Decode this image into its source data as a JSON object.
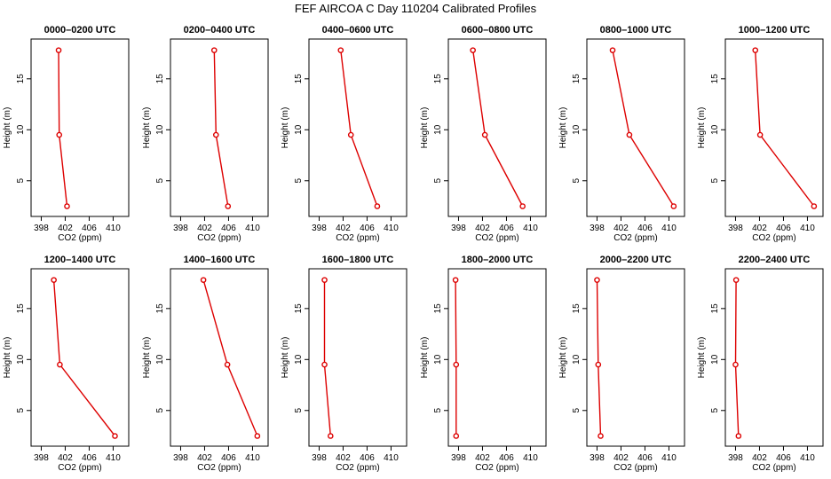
{
  "figure": {
    "title": "FEF AIRCOA C  Day 110204  Calibrated Profiles"
  },
  "colors": {
    "series": "#dd0000",
    "axis": "#000000",
    "background": "#ffffff"
  },
  "chart_data": [
    {
      "type": "line",
      "title": "0000–0200 UTC",
      "xlabel": "CO2 (ppm)",
      "ylabel": "Height (m)",
      "xlim": [
        396.3,
        412.6
      ],
      "ylim": [
        1.5,
        18.9
      ],
      "xticks": [
        398,
        402,
        406,
        410
      ],
      "yticks": [
        5,
        10,
        15
      ],
      "height": [
        2.5,
        9.5,
        17.8
      ],
      "co2": [
        402.3,
        401.0,
        400.9
      ]
    },
    {
      "type": "line",
      "title": "0200–0400 UTC",
      "xlabel": "CO2 (ppm)",
      "ylabel": "Height (m)",
      "xlim": [
        396.3,
        412.6
      ],
      "ylim": [
        1.5,
        18.9
      ],
      "xticks": [
        398,
        402,
        406,
        410
      ],
      "yticks": [
        5,
        10,
        15
      ],
      "height": [
        2.5,
        9.5,
        17.8
      ],
      "co2": [
        405.9,
        403.9,
        403.6
      ]
    },
    {
      "type": "line",
      "title": "0400–0600 UTC",
      "xlabel": "CO2 (ppm)",
      "ylabel": "Height (m)",
      "xlim": [
        396.3,
        412.6
      ],
      "ylim": [
        1.5,
        18.9
      ],
      "xticks": [
        398,
        402,
        406,
        410
      ],
      "yticks": [
        5,
        10,
        15
      ],
      "height": [
        2.5,
        9.5,
        17.8
      ],
      "co2": [
        407.7,
        403.3,
        401.6
      ]
    },
    {
      "type": "line",
      "title": "0600–0800 UTC",
      "xlabel": "CO2 (ppm)",
      "ylabel": "Height (m)",
      "xlim": [
        396.3,
        412.6
      ],
      "ylim": [
        1.5,
        18.9
      ],
      "xticks": [
        398,
        402,
        406,
        410
      ],
      "yticks": [
        5,
        10,
        15
      ],
      "height": [
        2.5,
        9.5,
        17.8
      ],
      "co2": [
        408.7,
        402.4,
        400.4
      ]
    },
    {
      "type": "line",
      "title": "0800–1000 UTC",
      "xlabel": "CO2 (ppm)",
      "ylabel": "Height (m)",
      "xlim": [
        396.3,
        412.6
      ],
      "ylim": [
        1.5,
        18.9
      ],
      "xticks": [
        398,
        402,
        406,
        410
      ],
      "yticks": [
        5,
        10,
        15
      ],
      "height": [
        2.5,
        9.5,
        17.8
      ],
      "co2": [
        410.8,
        403.4,
        400.6
      ]
    },
    {
      "type": "line",
      "title": "1000–1200 UTC",
      "xlabel": "CO2 (ppm)",
      "ylabel": "Height (m)",
      "xlim": [
        396.3,
        412.6
      ],
      "ylim": [
        1.5,
        18.9
      ],
      "xticks": [
        398,
        402,
        406,
        410
      ],
      "yticks": [
        5,
        10,
        15
      ],
      "height": [
        2.5,
        9.5,
        17.8
      ],
      "co2": [
        411.1,
        402.1,
        401.3
      ]
    },
    {
      "type": "line",
      "title": "1200–1400 UTC",
      "xlabel": "CO2 (ppm)",
      "ylabel": "Height (m)",
      "xlim": [
        396.3,
        412.6
      ],
      "ylim": [
        1.5,
        18.9
      ],
      "xticks": [
        398,
        402,
        406,
        410
      ],
      "yticks": [
        5,
        10,
        15
      ],
      "height": [
        2.5,
        9.5,
        17.8
      ],
      "co2": [
        410.3,
        401.1,
        400.1
      ]
    },
    {
      "type": "line",
      "title": "1400–1600 UTC",
      "xlabel": "CO2 (ppm)",
      "ylabel": "Height (m)",
      "xlim": [
        396.3,
        412.6
      ],
      "ylim": [
        1.5,
        18.9
      ],
      "xticks": [
        398,
        402,
        406,
        410
      ],
      "yticks": [
        5,
        10,
        15
      ],
      "height": [
        2.5,
        9.5,
        17.8
      ],
      "co2": [
        410.8,
        405.8,
        401.8
      ]
    },
    {
      "type": "line",
      "title": "1600–1800 UTC",
      "xlabel": "CO2 (ppm)",
      "ylabel": "Height (m)",
      "xlim": [
        396.3,
        412.6
      ],
      "ylim": [
        1.5,
        18.9
      ],
      "xticks": [
        398,
        402,
        406,
        410
      ],
      "yticks": [
        5,
        10,
        15
      ],
      "height": [
        2.5,
        9.5,
        17.8
      ],
      "co2": [
        399.9,
        398.9,
        398.9
      ]
    },
    {
      "type": "line",
      "title": "1800–2000 UTC",
      "xlabel": "CO2 (ppm)",
      "ylabel": "Height (m)",
      "xlim": [
        396.3,
        412.6
      ],
      "ylim": [
        1.5,
        18.9
      ],
      "xticks": [
        398,
        402,
        406,
        410
      ],
      "yticks": [
        5,
        10,
        15
      ],
      "height": [
        2.5,
        9.5,
        17.8
      ],
      "co2": [
        397.6,
        397.6,
        397.5
      ]
    },
    {
      "type": "line",
      "title": "2000–2200 UTC",
      "xlabel": "CO2 (ppm)",
      "ylabel": "Height (m)",
      "xlim": [
        396.3,
        412.6
      ],
      "ylim": [
        1.5,
        18.9
      ],
      "xticks": [
        398,
        402,
        406,
        410
      ],
      "yticks": [
        5,
        10,
        15
      ],
      "height": [
        2.5,
        9.5,
        17.8
      ],
      "co2": [
        398.6,
        398.2,
        398.0
      ]
    },
    {
      "type": "line",
      "title": "2200–2400 UTC",
      "xlabel": "CO2 (ppm)",
      "ylabel": "Height (m)",
      "xlim": [
        396.3,
        412.6
      ],
      "ylim": [
        1.5,
        18.9
      ],
      "xticks": [
        398,
        402,
        406,
        410
      ],
      "yticks": [
        5,
        10,
        15
      ],
      "height": [
        2.5,
        9.5,
        17.8
      ],
      "co2": [
        398.5,
        398.0,
        398.1
      ]
    }
  ]
}
